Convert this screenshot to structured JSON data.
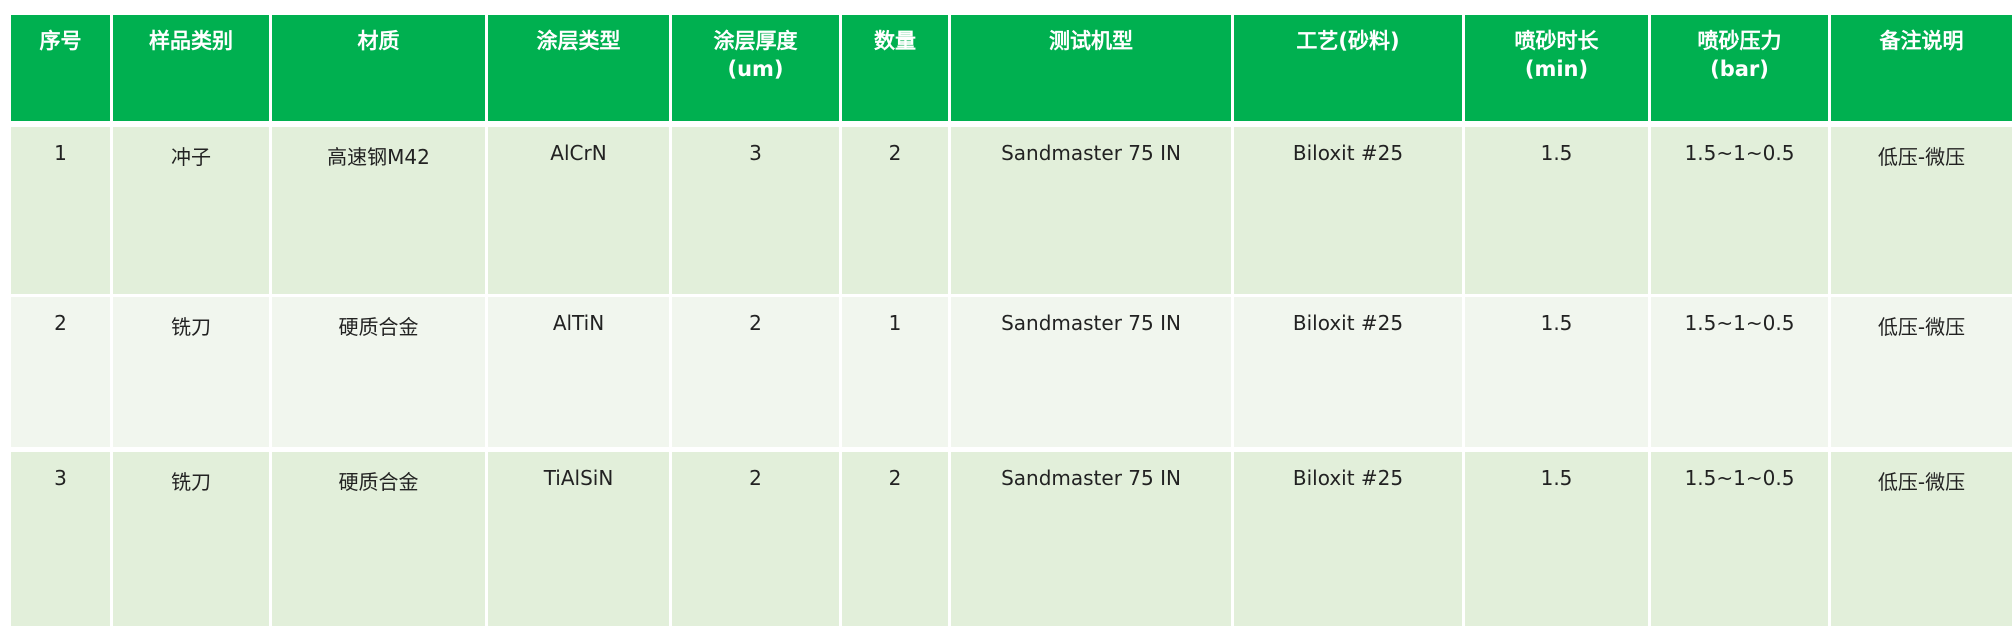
{
  "colors": {
    "header_bg": "#00b050",
    "row_odd": "#e2efda",
    "row_even": "#f1f6ee"
  },
  "headers": [
    {
      "line1": "序号",
      "line2": ""
    },
    {
      "line1": "样品类别",
      "line2": ""
    },
    {
      "line1": "材质",
      "line2": ""
    },
    {
      "line1": "涂层类型",
      "line2": ""
    },
    {
      "line1": "涂层厚度",
      "line2": "(um)"
    },
    {
      "line1": "数量",
      "line2": ""
    },
    {
      "line1": "测试机型",
      "line2": ""
    },
    {
      "line1": "工艺(砂料)",
      "line2": ""
    },
    {
      "line1": "喷砂时长",
      "line2": "(min)"
    },
    {
      "line1": "喷砂压力",
      "line2": "(bar)"
    },
    {
      "line1": "备注说明",
      "line2": ""
    }
  ],
  "rows": [
    [
      "1",
      "冲子",
      "高速钢M42",
      "AlCrN",
      "3",
      "2",
      "Sandmaster 75 IN",
      "Biloxit #25",
      "1.5",
      "1.5~1~0.5",
      "低压-微压"
    ],
    [
      "2",
      "铣刀",
      "硬质合金",
      "AlTiN",
      "2",
      "1",
      "Sandmaster 75 IN",
      "Biloxit #25",
      "1.5",
      "1.5~1~0.5",
      "低压-微压"
    ],
    [
      "3",
      "铣刀",
      "硬质合金",
      "TiAlSiN",
      "2",
      "2",
      "Sandmaster 75 IN",
      "Biloxit #25",
      "1.5",
      "1.5~1~0.5",
      "低压-微压"
    ]
  ]
}
